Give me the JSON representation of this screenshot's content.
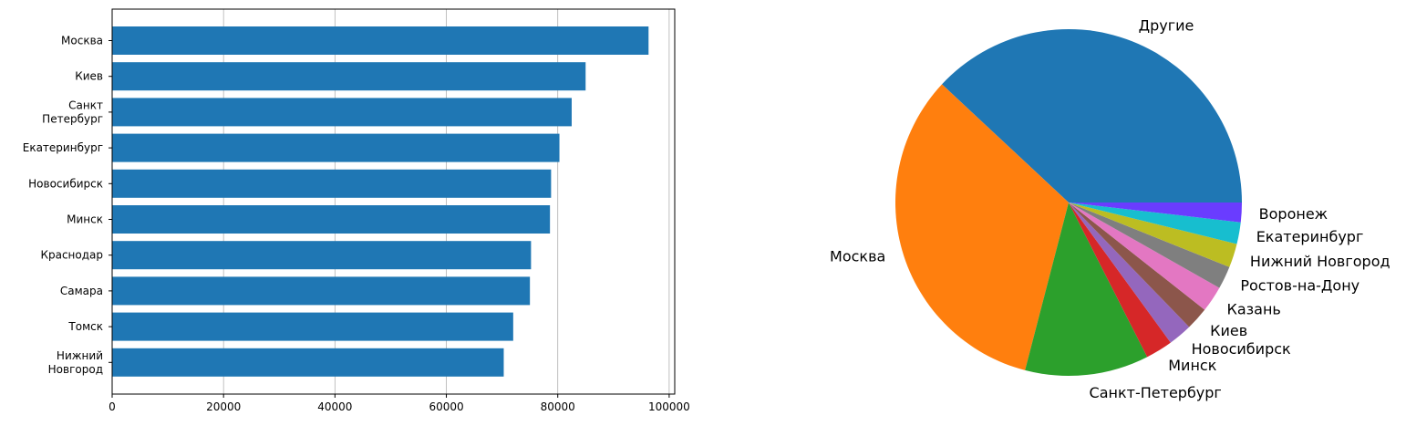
{
  "chart_data": [
    {
      "type": "bar",
      "orientation": "horizontal",
      "categories": [
        "Москва",
        "Киев",
        "Санкт\nПетербург",
        "Екатеринбург",
        "Новосибирск",
        "Минск",
        "Краснодар",
        "Самара",
        "Томск",
        "Нижний\nНовгород"
      ],
      "values": [
        96300,
        85000,
        82500,
        80300,
        78800,
        78600,
        75200,
        75000,
        72000,
        70300
      ],
      "xlim": [
        0,
        101000
      ],
      "xticks": [
        "0",
        "20000",
        "40000",
        "60000",
        "80000",
        "100000"
      ],
      "xtick_values": [
        0,
        20000,
        40000,
        60000,
        80000,
        100000
      ],
      "grid": "vertical",
      "color": "#1f77b4"
    },
    {
      "type": "pie",
      "labels": [
        "Другие",
        "Москва",
        "Санкт-Петербург",
        "Минск",
        "Новосибирск",
        "Киев",
        "Казань",
        "Ростов-на-Дону",
        "Нижний Новгород",
        "Екатеринбург",
        "Воронеж"
      ],
      "values": [
        37.6,
        32.5,
        11.4,
        2.5,
        2.2,
        2.1,
        2.4,
        2.1,
        2.2,
        2.0,
        1.8
      ],
      "colors": [
        "#1f77b4",
        "#ff7f0e",
        "#2ca02c",
        "#d62728",
        "#9467bd",
        "#8c564b",
        "#e377c2",
        "#7f7f7f",
        "#bcbd22",
        "#17becf",
        "#6a3cff"
      ]
    }
  ]
}
